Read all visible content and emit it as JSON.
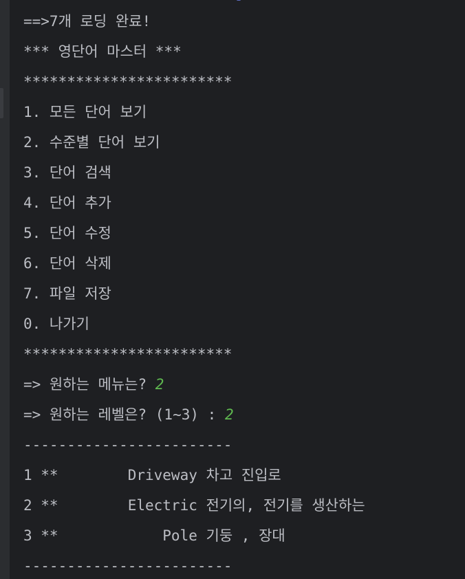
{
  "console": {
    "loaded": "==>7개 로딩 완료!",
    "title": "*** 영단어 마스터 ***",
    "separator_stars": "************************",
    "menu": [
      "1. 모든 단어 보기",
      "2. 수준별 단어 보기",
      "3. 단어 검색",
      "4. 단어 추가",
      "5. 단어 수정",
      "6. 단어 삭제",
      "7. 파일 저장",
      "0. 나가기"
    ],
    "menu_prompt": "=> 원하는 메뉴는? ",
    "menu_input": "2",
    "level_prompt": "=> 원하는 레벨은? (1~3) : ",
    "level_input": "2",
    "separator_dashes": "------------------------",
    "words": [
      "1 **        Driveway 차고 진입로",
      "2 **        Electric 전기의, 전기를 생산하는",
      "3 **            Pole 기둥 , 장대"
    ]
  },
  "colors": {
    "background": "#1e1f22",
    "text": "#bcbec4",
    "user_input": "#5fb950"
  }
}
